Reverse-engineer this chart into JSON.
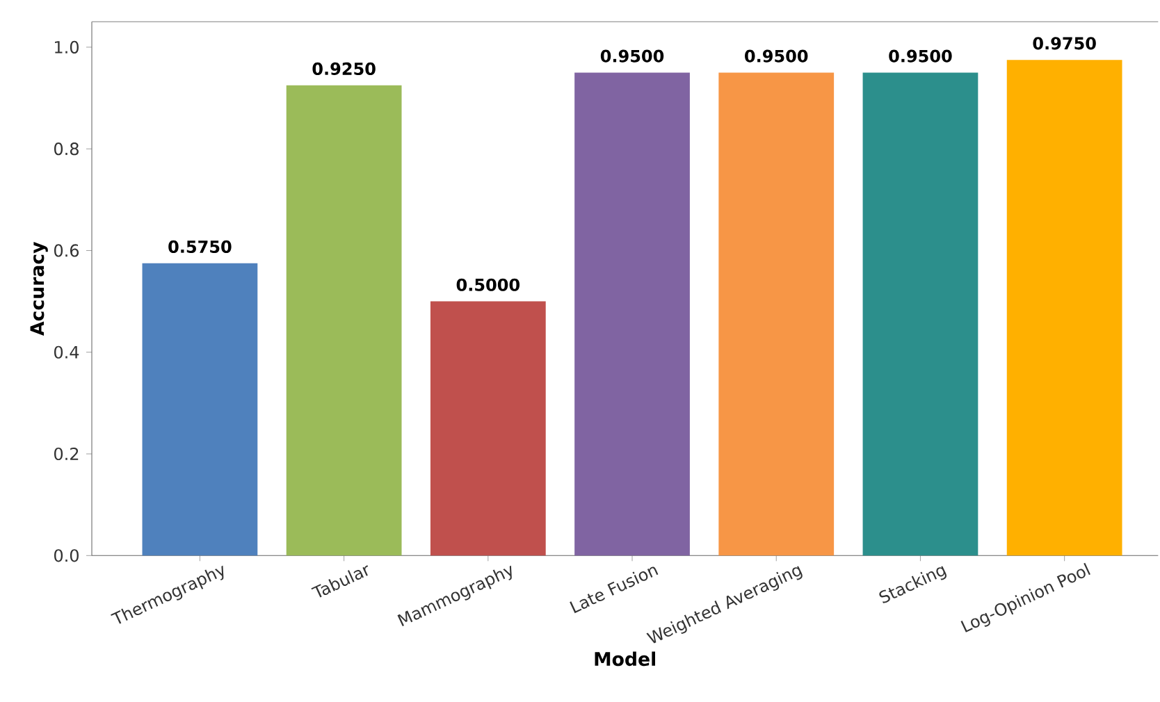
{
  "chart_data": {
    "type": "bar",
    "xlabel": "Model",
    "ylabel": "Accuracy",
    "categories": [
      "Thermography",
      "Tabular",
      "Mammography",
      "Late Fusion",
      "Weighted Averaging",
      "Stacking",
      "Log-Opinion Pool"
    ],
    "values": [
      0.575,
      0.925,
      0.5,
      0.95,
      0.95,
      0.95,
      0.975
    ],
    "colors": [
      "#4f81bd",
      "#9bbb59",
      "#c0504d",
      "#8064a2",
      "#f79646",
      "#2c8f8c",
      "#ffb000"
    ],
    "ylim": [
      0,
      1.05
    ],
    "yticks": [
      {
        "value": 0,
        "label": "0.0"
      },
      0.2,
      0.4,
      0.6,
      0.8,
      {
        "value": 1,
        "label": "1.0"
      }
    ],
    "value_labels": [
      "0.5750",
      "0.9250",
      "0.5000",
      "0.9500",
      "0.9500",
      "0.9500",
      "0.9750"
    ],
    "grid": false
  }
}
